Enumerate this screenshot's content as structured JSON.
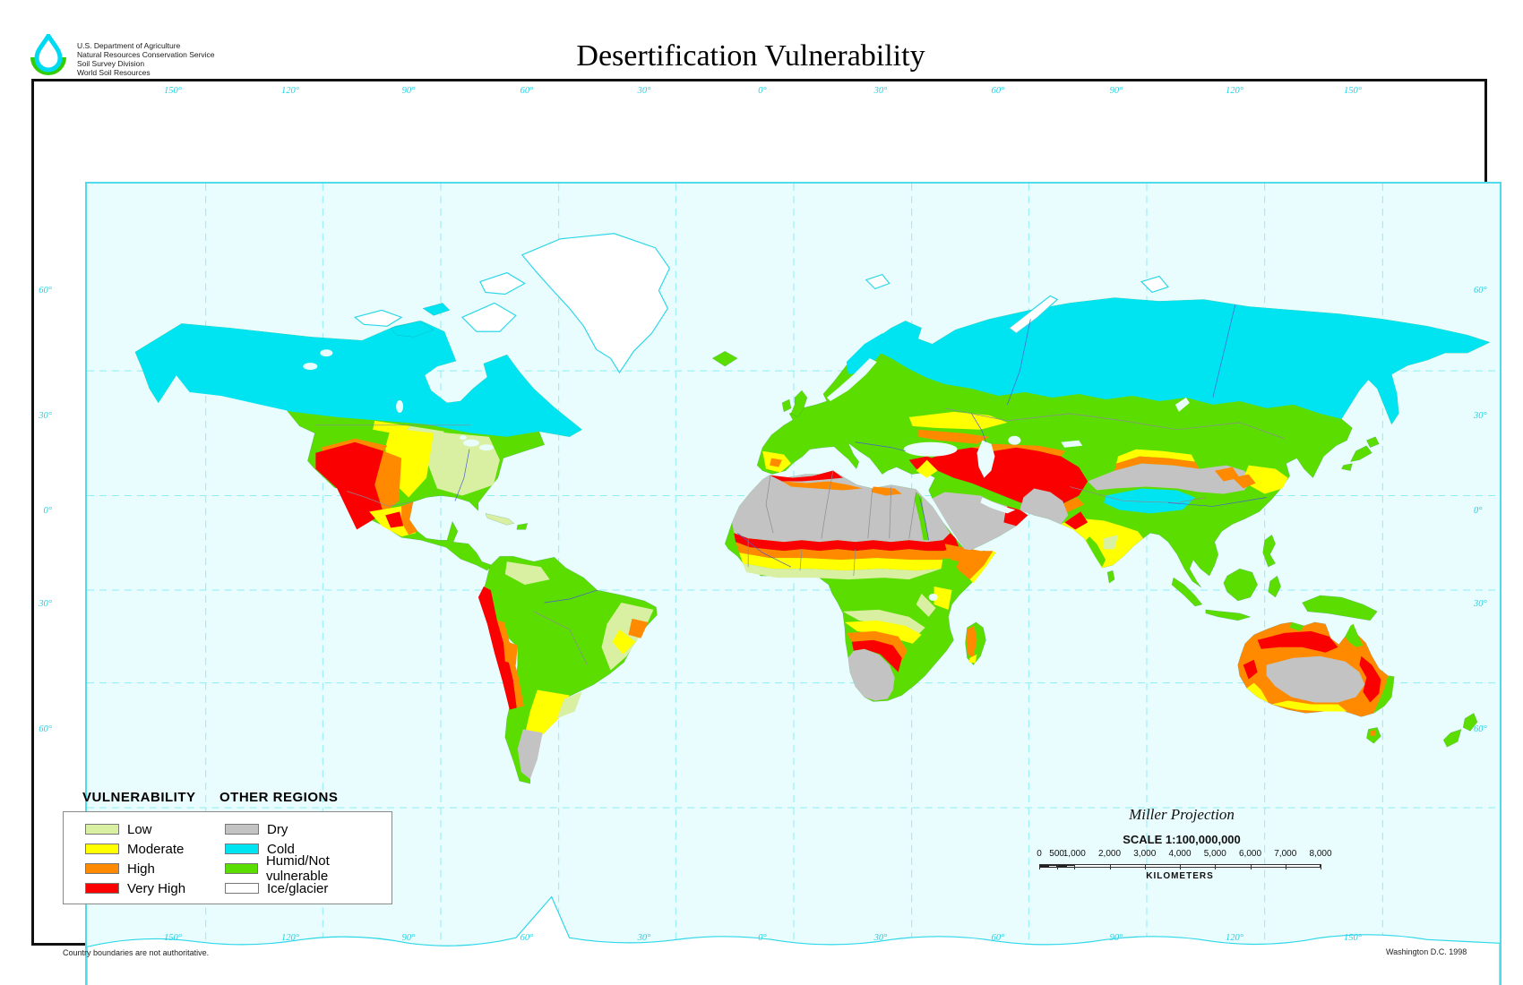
{
  "header": {
    "agency_lines": [
      "U.S. Department of Agriculture",
      "Natural Resources Conservation Service",
      "Soil Survey Division",
      "World Soil Resources"
    ],
    "title": "Desertification Vulnerability"
  },
  "map": {
    "axis": {
      "top_lon_labels": [
        "150°",
        "120°",
        "90°",
        "60°",
        "30°",
        "0°",
        "30°",
        "60°",
        "90°",
        "120°",
        "150°"
      ],
      "bottom_lon_labels": [
        "150°",
        "120°",
        "90°",
        "60°",
        "30°",
        "0°",
        "30°",
        "60°",
        "90°",
        "120°",
        "150°"
      ],
      "left_lat_labels": [
        "60°",
        "30°",
        "0°",
        "30°",
        "60°"
      ],
      "right_lat_labels": [
        "60°",
        "30°",
        "0°",
        "30°",
        "60°"
      ]
    },
    "legend": {
      "vulnerability_title": "VULNERABILITY",
      "other_title": "OTHER REGIONS",
      "vulnerability_items": [
        {
          "label": "Low",
          "color": "#d9f0a2"
        },
        {
          "label": "Moderate",
          "color": "#ffff00"
        },
        {
          "label": "High",
          "color": "#ff8a00"
        },
        {
          "label": "Very High",
          "color": "#fb0000"
        }
      ],
      "other_items": [
        {
          "label": "Dry",
          "color": "#c3c3c3"
        },
        {
          "label": "Cold",
          "color": "#00e4f2"
        },
        {
          "label": "Humid/Not vulnerable",
          "color": "#5cdd00"
        },
        {
          "label": "Ice/glacier",
          "color": "#ffffff"
        }
      ]
    },
    "scale": {
      "projection": "Miller Projection",
      "scale_text": "SCALE 1:100,000,000",
      "unit_label": "KILOMETERS",
      "ticks": [
        {
          "label": "0",
          "km": 0
        },
        {
          "label": "500",
          "km": 500
        },
        {
          "label": "1,000",
          "km": 1000
        },
        {
          "label": "2,000",
          "km": 2000
        },
        {
          "label": "3,000",
          "km": 3000
        },
        {
          "label": "4,000",
          "km": 4000
        },
        {
          "label": "5,000",
          "km": 5000
        },
        {
          "label": "6,000",
          "km": 6000
        },
        {
          "label": "7,000",
          "km": 7000
        },
        {
          "label": "8,000",
          "km": 8000
        }
      ]
    }
  },
  "footer": {
    "left_note": "Country boundaries are not authoritative.",
    "right_note": "Washington D.C. 1998"
  }
}
